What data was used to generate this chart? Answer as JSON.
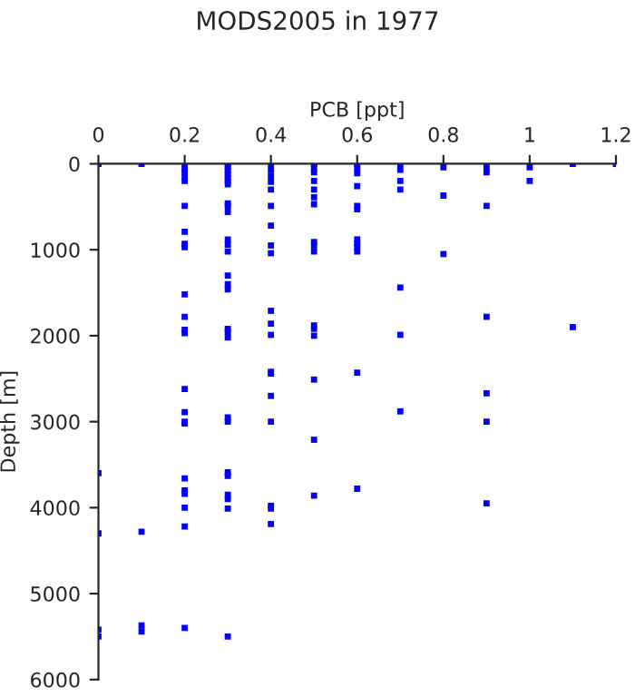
{
  "chart_data": {
    "type": "scatter",
    "title": "MODS2005 in 1977",
    "xlabel": "PCB [ppt]",
    "ylabel": "Depth [m]",
    "x": [
      0,
      0,
      0,
      0,
      0,
      0.1,
      0.1,
      0.1,
      0.1,
      0.2,
      0.2,
      0.2,
      0.2,
      0.2,
      0.2,
      0.2,
      0.2,
      0.2,
      0.2,
      0.2,
      0.2,
      0.2,
      0.2,
      0.2,
      0.2,
      0.2,
      0.2,
      0.2,
      0.2,
      0.2,
      0.2,
      0.2,
      0.3,
      0.3,
      0.3,
      0.3,
      0.3,
      0.3,
      0.3,
      0.3,
      0.3,
      0.3,
      0.3,
      0.3,
      0.3,
      0.3,
      0.3,
      0.3,
      0.3,
      0.3,
      0.3,
      0.3,
      0.3,
      0.3,
      0.3,
      0.3,
      0.3,
      0.3,
      0.3,
      0.4,
      0.4,
      0.4,
      0.4,
      0.4,
      0.4,
      0.4,
      0.4,
      0.4,
      0.4,
      0.4,
      0.4,
      0.4,
      0.4,
      0.4,
      0.4,
      0.4,
      0.4,
      0.4,
      0.5,
      0.5,
      0.5,
      0.5,
      0.5,
      0.5,
      0.5,
      0.5,
      0.5,
      0.5,
      0.5,
      0.5,
      0.5,
      0.5,
      0.5,
      0.5,
      0.6,
      0.6,
      0.6,
      0.6,
      0.6,
      0.6,
      0.6,
      0.6,
      0.6,
      0.6,
      0.6,
      0.6,
      0.7,
      0.7,
      0.7,
      0.7,
      0.7,
      0.7,
      0.7,
      0.8,
      0.8,
      0.8,
      0.9,
      0.9,
      0.9,
      0.9,
      0.9,
      0.9,
      0.9,
      0.9,
      1.0,
      1.0,
      1.1,
      1.1,
      1.2
    ],
    "values": [
      0,
      3600,
      4300,
      5420,
      5500,
      0,
      4280,
      5370,
      5440,
      0,
      60,
      100,
      150,
      200,
      490,
      790,
      930,
      970,
      1520,
      1780,
      1930,
      1970,
      2620,
      2890,
      3000,
      3020,
      3660,
      3800,
      3840,
      4000,
      4220,
      5400,
      0,
      40,
      80,
      120,
      160,
      200,
      240,
      460,
      490,
      560,
      880,
      940,
      1020,
      1300,
      1400,
      1460,
      1920,
      1960,
      2020,
      2950,
      3000,
      3590,
      3630,
      3850,
      3900,
      4010,
      5500,
      0,
      70,
      140,
      210,
      300,
      490,
      720,
      950,
      1040,
      1710,
      1860,
      1990,
      2420,
      2440,
      2700,
      3000,
      3980,
      4010,
      4190,
      0,
      50,
      100,
      200,
      300,
      390,
      470,
      910,
      950,
      1020,
      1880,
      1920,
      2000,
      2510,
      3210,
      3860,
      0,
      50,
      110,
      260,
      490,
      530,
      880,
      930,
      970,
      1020,
      2430,
      3780,
      0,
      70,
      200,
      300,
      1440,
      1990,
      2880,
      40,
      370,
      1050,
      0,
      60,
      100,
      490,
      1780,
      2670,
      3000,
      3950,
      40,
      200,
      0,
      1900,
      0
    ],
    "color": "#0000ff",
    "marker": "square",
    "xlim": [
      0,
      1.2
    ],
    "xticks": [
      0,
      0.2,
      0.4,
      0.6,
      0.8,
      1,
      1.2
    ],
    "ylim": [
      6000,
      0
    ],
    "yticks": [
      0,
      1000,
      2000,
      3000,
      4000,
      5000,
      6000
    ],
    "grid": false
  }
}
